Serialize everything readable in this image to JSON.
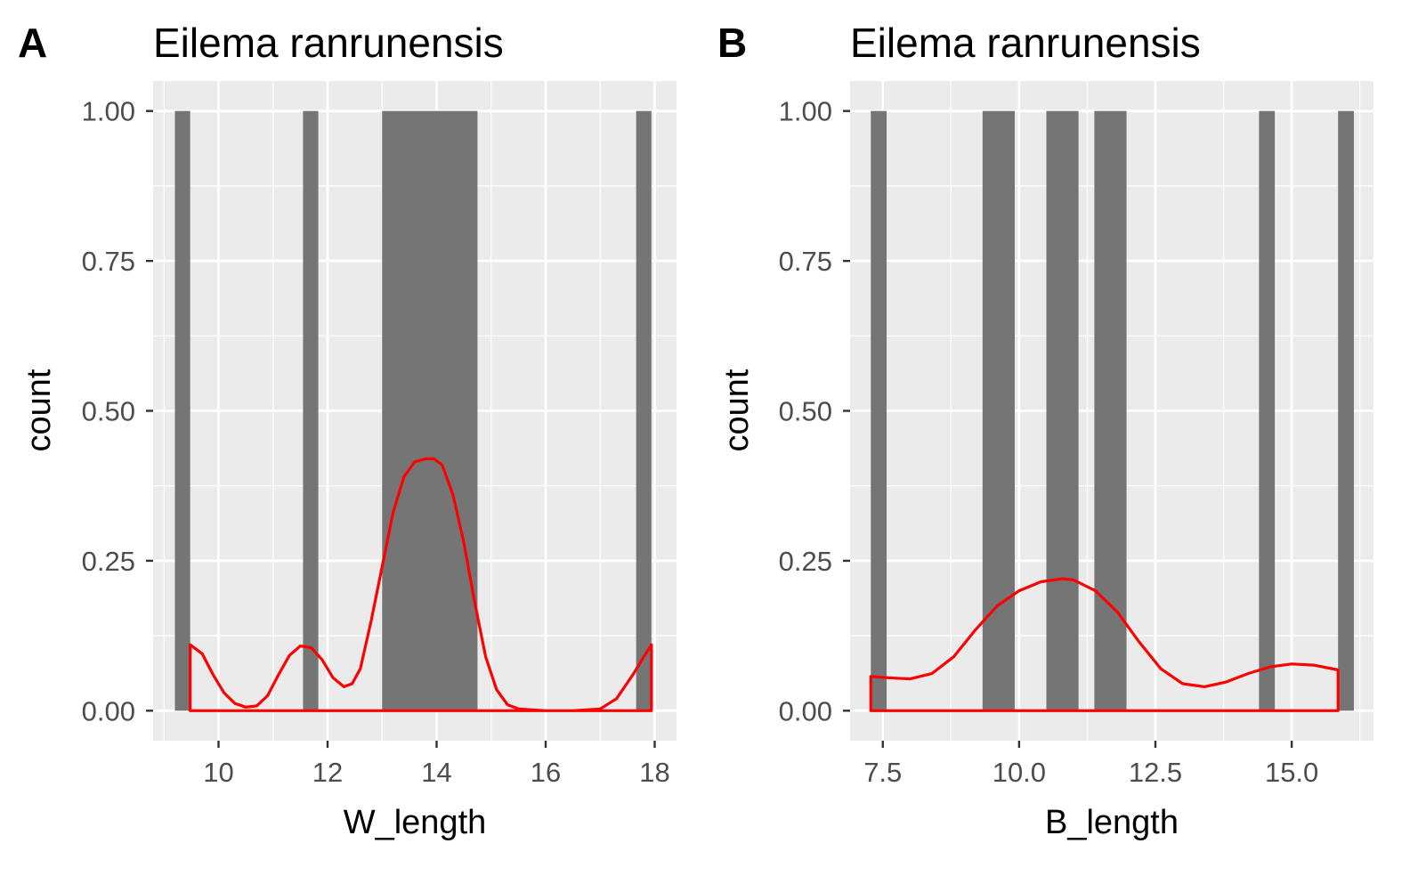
{
  "chart_data": [
    {
      "type": "bar",
      "panel_label": "A",
      "title": "Eilema ranrunensis",
      "xlabel": "W_length",
      "ylabel": "count",
      "xlim": [
        8.8,
        18.4
      ],
      "ylim": [
        -0.05,
        1.05
      ],
      "xticks": [
        10,
        12,
        14,
        16,
        18
      ],
      "yticks": [
        0.0,
        0.25,
        0.5,
        0.75,
        1.0
      ],
      "xtick_labels": [
        "10",
        "12",
        "14",
        "16",
        "18"
      ],
      "ytick_labels": [
        "0.00",
        "0.25",
        "0.50",
        "0.75",
        "1.00"
      ],
      "grid": true,
      "bar_color": "#757575",
      "bars": [
        {
          "x0": 9.2,
          "x1": 9.48,
          "count": 1
        },
        {
          "x0": 11.55,
          "x1": 11.83,
          "count": 1
        },
        {
          "x0": 13.0,
          "x1": 14.75,
          "count": 1
        },
        {
          "x0": 17.66,
          "x1": 17.94,
          "count": 1
        }
      ],
      "density": {
        "color": "#ff0000",
        "x": [
          9.48,
          9.7,
          9.9,
          10.1,
          10.3,
          10.5,
          10.7,
          10.9,
          11.1,
          11.3,
          11.5,
          11.7,
          11.9,
          12.1,
          12.3,
          12.45,
          12.6,
          12.8,
          13.0,
          13.2,
          13.4,
          13.6,
          13.8,
          13.95,
          14.1,
          14.3,
          14.5,
          14.7,
          14.9,
          15.1,
          15.3,
          15.5,
          16.0,
          16.5,
          17.0,
          17.3,
          17.6,
          17.8,
          17.94
        ],
        "y": [
          0.11,
          0.095,
          0.06,
          0.03,
          0.012,
          0.006,
          0.008,
          0.025,
          0.06,
          0.092,
          0.108,
          0.105,
          0.085,
          0.055,
          0.04,
          0.045,
          0.07,
          0.15,
          0.24,
          0.33,
          0.39,
          0.415,
          0.42,
          0.42,
          0.41,
          0.36,
          0.28,
          0.18,
          0.09,
          0.035,
          0.01,
          0.003,
          0.0,
          0.0,
          0.003,
          0.02,
          0.06,
          0.09,
          0.11
        ]
      }
    },
    {
      "type": "bar",
      "panel_label": "B",
      "title": "Eilema ranrunensis",
      "xlabel": "B_length",
      "ylabel": "count",
      "xlim": [
        6.9,
        16.5
      ],
      "ylim": [
        -0.05,
        1.05
      ],
      "xticks": [
        7.5,
        10.0,
        12.5,
        15.0
      ],
      "yticks": [
        0.0,
        0.25,
        0.5,
        0.75,
        1.0
      ],
      "xtick_labels": [
        "7.5",
        "10.0",
        "12.5",
        "15.0"
      ],
      "ytick_labels": [
        "0.00",
        "0.25",
        "0.50",
        "0.75",
        "1.00"
      ],
      "grid": true,
      "bar_color": "#757575",
      "bars": [
        {
          "x0": 7.28,
          "x1": 7.57,
          "count": 1
        },
        {
          "x0": 9.33,
          "x1": 9.92,
          "count": 1
        },
        {
          "x0": 10.5,
          "x1": 11.09,
          "count": 1
        },
        {
          "x0": 11.38,
          "x1": 11.97,
          "count": 1
        },
        {
          "x0": 14.4,
          "x1": 14.69,
          "count": 1
        },
        {
          "x0": 15.85,
          "x1": 16.14,
          "count": 1
        }
      ],
      "density": {
        "color": "#ff0000",
        "x": [
          7.28,
          7.6,
          8.0,
          8.4,
          8.8,
          9.2,
          9.6,
          10.0,
          10.4,
          10.8,
          11.0,
          11.4,
          11.8,
          12.2,
          12.6,
          13.0,
          13.4,
          13.8,
          14.2,
          14.6,
          15.0,
          15.4,
          15.85
        ],
        "y": [
          0.057,
          0.055,
          0.053,
          0.062,
          0.09,
          0.135,
          0.175,
          0.2,
          0.215,
          0.22,
          0.218,
          0.2,
          0.165,
          0.115,
          0.07,
          0.045,
          0.04,
          0.048,
          0.062,
          0.073,
          0.078,
          0.076,
          0.068
        ]
      }
    }
  ]
}
